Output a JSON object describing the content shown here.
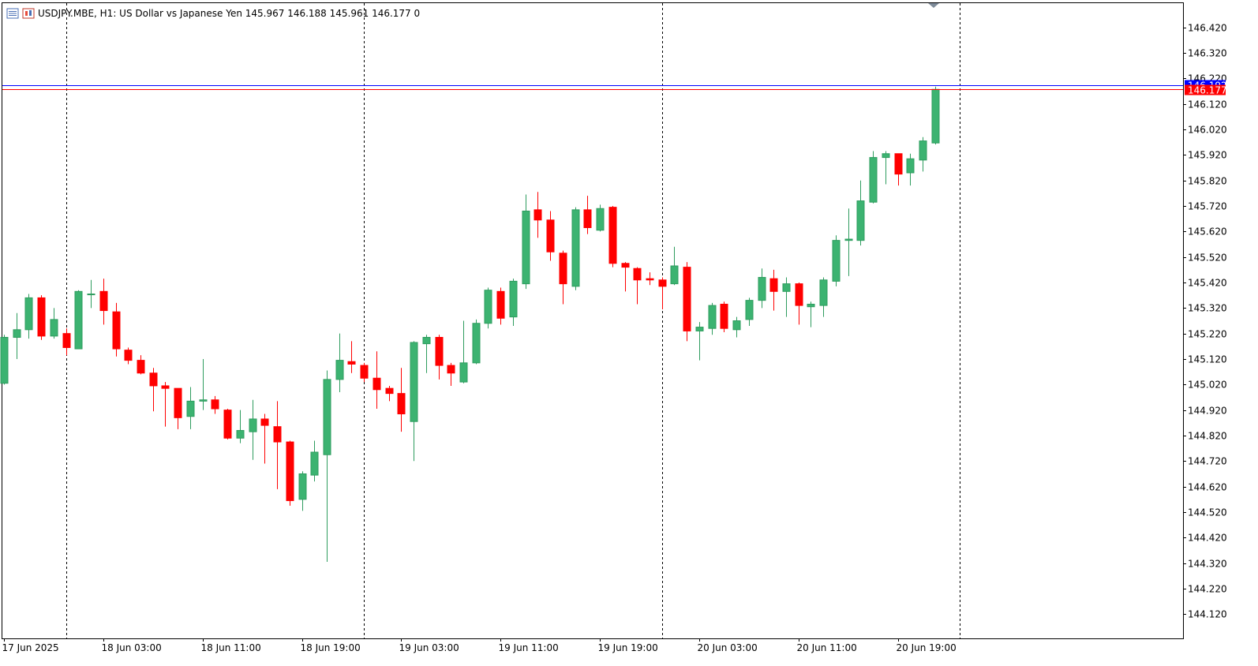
{
  "header": {
    "symbol_line": "USDJPY.MBE, H1:  US Dollar vs Japanese Yen  145.967 146.188 145.961 146.177  0",
    "icons": [
      "list-icon",
      "chart-icon"
    ]
  },
  "colors": {
    "bull": "#2e9c5e",
    "bull_fill": "#3cb371",
    "bear": "#ff0000",
    "ask_line": "#0000ff",
    "bid_line": "#ff0000",
    "grid": "#000000"
  },
  "chart_data": {
    "type": "candlestick",
    "title": "USDJPY.MBE, H1:  US Dollar vs Japanese Yen",
    "price_labels": [
      "146.420",
      "146.320",
      "146.220",
      "146.120",
      "146.020",
      "145.920",
      "145.820",
      "145.720",
      "145.620",
      "145.520",
      "145.420",
      "145.320",
      "145.220",
      "145.120",
      "145.020",
      "144.920",
      "144.820",
      "144.720",
      "144.620",
      "144.520",
      "144.420",
      "144.320",
      "144.220",
      "144.120"
    ],
    "price_values": [
      146.42,
      146.32,
      146.22,
      146.12,
      146.02,
      145.92,
      145.82,
      145.72,
      145.62,
      145.52,
      145.42,
      145.32,
      145.22,
      145.12,
      145.02,
      144.92,
      144.82,
      144.72,
      144.62,
      144.52,
      144.42,
      144.32,
      144.22,
      144.12
    ],
    "ylim": [
      144.025,
      146.515
    ],
    "time_labels": [
      "17 Jun 2025",
      "18 Jun 03:00",
      "18 Jun 11:00",
      "18 Jun 19:00",
      "19 Jun 03:00",
      "19 Jun 11:00",
      "19 Jun 19:00",
      "20 Jun 03:00",
      "20 Jun 11:00",
      "20 Jun 19:00"
    ],
    "time_label_index": [
      0,
      8,
      16,
      24,
      32,
      40,
      48,
      56,
      64,
      72
    ],
    "day_separators_index": [
      5,
      29,
      53,
      77
    ],
    "ask_price": 146.192,
    "bid_price": 146.177,
    "ask_label": "146.192",
    "bid_label": "146.177",
    "candles": [
      [
        145.025,
        145.215,
        145.02,
        145.205
      ],
      [
        145.205,
        145.3,
        145.12,
        145.235
      ],
      [
        145.235,
        145.375,
        145.2,
        145.36
      ],
      [
        145.36,
        145.37,
        145.195,
        145.21
      ],
      [
        145.21,
        145.32,
        145.2,
        145.275
      ],
      [
        145.22,
        145.24,
        145.135,
        145.165
      ],
      [
        145.16,
        145.39,
        145.16,
        145.385
      ],
      [
        145.375,
        145.43,
        145.32,
        145.375
      ],
      [
        145.385,
        145.435,
        145.255,
        145.31
      ],
      [
        145.305,
        145.34,
        145.13,
        145.16
      ],
      [
        145.155,
        145.165,
        145.1,
        145.115
      ],
      [
        145.115,
        145.135,
        145.06,
        145.065
      ],
      [
        145.065,
        145.085,
        144.915,
        145.015
      ],
      [
        145.015,
        145.03,
        144.855,
        145.005
      ],
      [
        145.005,
        145.005,
        144.845,
        144.89
      ],
      [
        144.895,
        145.01,
        144.845,
        144.955
      ],
      [
        144.955,
        145.12,
        144.92,
        144.96
      ],
      [
        144.96,
        144.975,
        144.905,
        144.925
      ],
      [
        144.92,
        144.925,
        144.805,
        144.81
      ],
      [
        144.81,
        144.92,
        144.79,
        144.84
      ],
      [
        144.835,
        144.96,
        144.725,
        144.885
      ],
      [
        144.885,
        144.905,
        144.71,
        144.86
      ],
      [
        144.855,
        144.955,
        144.61,
        144.795
      ],
      [
        144.795,
        144.8,
        144.545,
        144.565
      ],
      [
        144.57,
        144.68,
        144.525,
        144.67
      ],
      [
        144.665,
        144.8,
        144.64,
        144.755
      ],
      [
        144.745,
        145.075,
        144.325,
        145.04
      ],
      [
        145.04,
        145.22,
        144.99,
        145.115
      ],
      [
        145.11,
        145.19,
        145.065,
        145.1
      ],
      [
        145.095,
        145.105,
        145.03,
        145.045
      ],
      [
        145.045,
        145.15,
        144.925,
        145.0
      ],
      [
        145.005,
        145.015,
        144.955,
        144.985
      ],
      [
        144.985,
        145.085,
        144.835,
        144.905
      ],
      [
        144.875,
        145.19,
        144.72,
        145.185
      ],
      [
        145.18,
        145.215,
        145.065,
        145.205
      ],
      [
        145.205,
        145.215,
        145.04,
        145.095
      ],
      [
        145.095,
        145.105,
        145.015,
        145.065
      ],
      [
        145.03,
        145.27,
        145.025,
        145.105
      ],
      [
        145.105,
        145.275,
        145.1,
        145.26
      ],
      [
        145.26,
        145.4,
        145.24,
        145.39
      ],
      [
        145.385,
        145.4,
        145.255,
        145.28
      ],
      [
        145.285,
        145.435,
        145.25,
        145.425
      ],
      [
        145.415,
        145.765,
        145.395,
        145.7
      ],
      [
        145.705,
        145.775,
        145.595,
        145.665
      ],
      [
        145.665,
        145.7,
        145.505,
        145.54
      ],
      [
        145.535,
        145.545,
        145.335,
        145.415
      ],
      [
        145.405,
        145.715,
        145.39,
        145.705
      ],
      [
        145.705,
        145.76,
        145.61,
        145.635
      ],
      [
        145.625,
        145.725,
        145.62,
        145.71
      ],
      [
        145.715,
        145.72,
        145.48,
        145.495
      ],
      [
        145.495,
        145.5,
        145.385,
        145.48
      ],
      [
        145.475,
        145.48,
        145.335,
        145.43
      ],
      [
        145.435,
        145.46,
        145.41,
        145.43
      ],
      [
        145.43,
        145.44,
        145.315,
        145.405
      ],
      [
        145.415,
        145.56,
        145.41,
        145.485
      ],
      [
        145.48,
        145.5,
        145.19,
        145.23
      ],
      [
        145.23,
        145.265,
        145.115,
        145.245
      ],
      [
        145.24,
        145.34,
        145.215,
        145.33
      ],
      [
        145.335,
        145.345,
        145.225,
        145.24
      ],
      [
        145.235,
        145.285,
        145.205,
        145.27
      ],
      [
        145.275,
        145.36,
        145.25,
        145.35
      ],
      [
        145.35,
        145.475,
        145.32,
        145.44
      ],
      [
        145.435,
        145.47,
        145.31,
        145.385
      ],
      [
        145.385,
        145.44,
        145.285,
        145.415
      ],
      [
        145.415,
        145.42,
        145.255,
        145.33
      ],
      [
        145.325,
        145.345,
        145.245,
        145.335
      ],
      [
        145.33,
        145.44,
        145.285,
        145.43
      ],
      [
        145.425,
        145.605,
        145.405,
        145.585
      ],
      [
        145.585,
        145.71,
        145.445,
        145.59
      ],
      [
        145.585,
        145.82,
        145.565,
        145.74
      ],
      [
        145.735,
        145.935,
        145.73,
        145.91
      ],
      [
        145.91,
        145.935,
        145.805,
        145.925
      ],
      [
        145.925,
        145.925,
        145.8,
        145.845
      ],
      [
        145.85,
        145.925,
        145.8,
        145.905
      ],
      [
        145.9,
        145.99,
        145.855,
        145.975
      ],
      [
        145.967,
        146.188,
        145.961,
        146.177
      ]
    ]
  }
}
